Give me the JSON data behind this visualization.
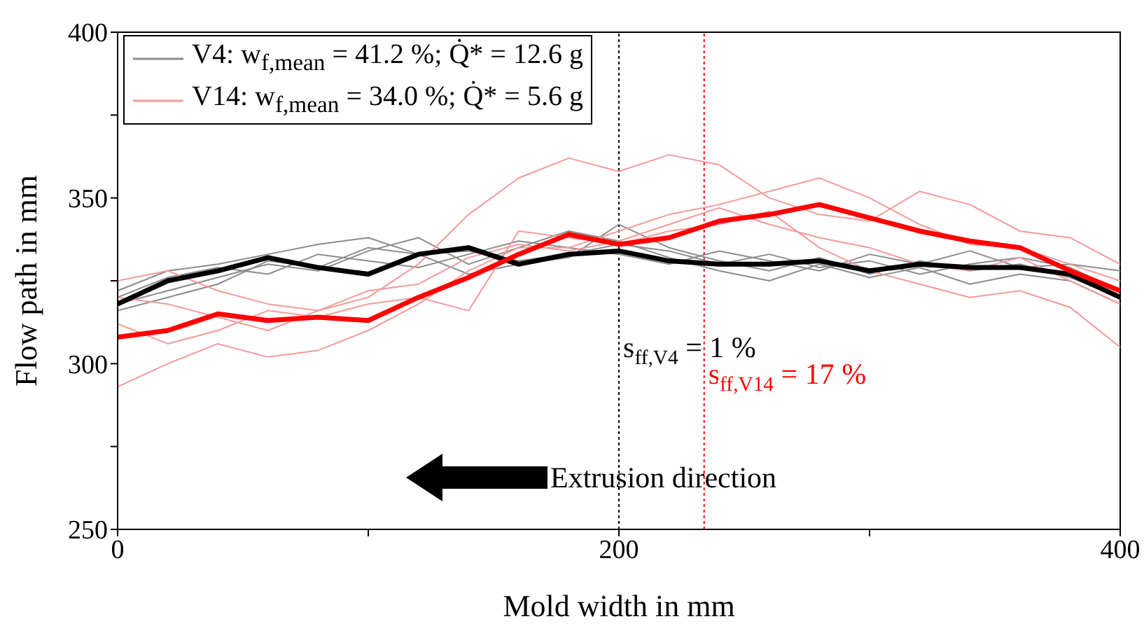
{
  "chart_data": {
    "type": "line",
    "xlabel": "Mold width in mm",
    "ylabel": "Flow path in mm",
    "x": [
      0,
      20,
      40,
      60,
      80,
      100,
      120,
      140,
      160,
      180,
      200,
      220,
      240,
      260,
      280,
      300,
      320,
      340,
      360,
      380,
      400
    ],
    "series": [
      {
        "name": "V4: w$_{f,mean}$ = 41.2 %; Q̇* = 12.6 g",
        "color": "#8c8c8c",
        "values": [
          322,
          328,
          330,
          333,
          336,
          338,
          333,
          334,
          331,
          333,
          336,
          334,
          330,
          333,
          329,
          331,
          327,
          330,
          332,
          329,
          322
        ]
      },
      {
        "color": "#8c8c8c",
        "values": [
          318,
          322,
          326,
          330,
          328,
          334,
          338,
          330,
          335,
          340,
          337,
          332,
          328,
          325,
          330,
          326,
          329,
          324,
          327,
          325,
          318
        ]
      },
      {
        "color": "#8c8c8c",
        "values": [
          320,
          326,
          329,
          327,
          333,
          331,
          329,
          333,
          337,
          335,
          333,
          330,
          334,
          331,
          328,
          333,
          330,
          334,
          329,
          330,
          328
        ]
      },
      {
        "color": "#8c8c8c",
        "values": [
          316,
          320,
          324,
          331,
          329,
          335,
          333,
          327,
          330,
          332,
          342,
          335,
          331,
          328,
          332,
          327,
          331,
          328,
          330,
          326,
          320
        ]
      },
      {
        "name": "V14: w$_{f,mean}$ = 34.0 %; Q̇* = 5.6 g",
        "color": "#f59a9a",
        "values": [
          325,
          328,
          322,
          318,
          316,
          320,
          330,
          345,
          356,
          362,
          358,
          363,
          360,
          350,
          345,
          343,
          352,
          348,
          340,
          338,
          330
        ]
      },
      {
        "color": "#f59a9a",
        "values": [
          293,
          300,
          306,
          302,
          304,
          310,
          318,
          328,
          335,
          335,
          340,
          345,
          348,
          352,
          356,
          350,
          342,
          336,
          335,
          330,
          325
        ]
      },
      {
        "color": "#f59a9a",
        "values": [
          312,
          306,
          310,
          316,
          314,
          318,
          320,
          316,
          340,
          338,
          336,
          340,
          342,
          346,
          335,
          328,
          324,
          320,
          322,
          317,
          305
        ]
      },
      {
        "color": "#f59a9a",
        "values": [
          320,
          318,
          314,
          310,
          316,
          322,
          324,
          332,
          336,
          334,
          337,
          342,
          347,
          342,
          338,
          335,
          330,
          328,
          332,
          325,
          318
        ]
      },
      {
        "color": "#000000",
        "values": [
          318,
          325,
          328,
          332,
          329,
          327,
          333,
          335,
          330,
          333,
          334,
          331,
          330,
          330,
          331,
          328,
          330,
          329,
          329,
          327,
          320
        ]
      },
      {
        "color": "#ff0000",
        "values": [
          308,
          310,
          315,
          313,
          314,
          313,
          320,
          326,
          333,
          339,
          336,
          338,
          343,
          345,
          348,
          344,
          340,
          337,
          335,
          328,
          322
        ]
      }
    ],
    "xlim": [
      0,
      400
    ],
    "xticks": [
      0,
      {
        "value": 100,
        "label": null
      },
      200,
      {
        "value": 300,
        "label": null
      },
      400
    ],
    "ylim": [
      250,
      400
    ],
    "yticks": [
      250,
      {
        "value": 275,
        "label": null
      },
      300,
      {
        "value": 325,
        "label": null
      },
      350,
      {
        "value": 375,
        "label": null
      },
      400
    ],
    "ref_lines": [
      {
        "axis": "x",
        "value": 200,
        "color": "#000000",
        "line_style": "dotted"
      },
      {
        "axis": "x",
        "value": 234,
        "color": "#ff0000",
        "line_style": "dotted"
      }
    ],
    "annotations": [
      "s$_{ff,V4}$ = 1 %",
      "s$_{ff,V14}$ = 17 %",
      "Extrusion direction"
    ],
    "legend": "top left",
    "grid": false,
    "marker": "none",
    "line_style": "solid"
  }
}
